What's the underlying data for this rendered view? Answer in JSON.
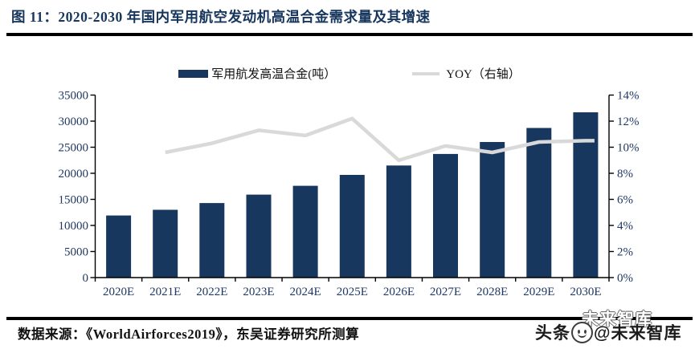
{
  "figure": {
    "title": "图 11：2020-2030 年国内军用航空发动机高温合金需求量及其增速",
    "source": "数据来源：《WorldAirforces2019》，东吴证券研究所测算"
  },
  "watermark": {
    "ghost_text": "未来智库",
    "prefix": "头条",
    "suffix": "@未来智库"
  },
  "colors": {
    "bar": "#17375E",
    "line": "#D9D9D9",
    "title_text": "#17365D",
    "axis_label_text": "#1F3864",
    "axis_line": "#000000",
    "rule": "#000000"
  },
  "chart_data": {
    "type": "bar",
    "subtype": "bar-line-combo",
    "title": "2020-2030 年国内军用航空发动机高温合金需求量及其增速",
    "categories": [
      "2020E",
      "2021E",
      "2022E",
      "2023E",
      "2024E",
      "2025E",
      "2026E",
      "2027E",
      "2028E",
      "2029E",
      "2030E"
    ],
    "series": [
      {
        "name": "军用航发高温合金(吨）",
        "type": "bar",
        "axis": "left",
        "color": "#17375E",
        "values": [
          11900,
          13000,
          14300,
          15900,
          17600,
          19700,
          21500,
          23700,
          26000,
          28700,
          31700
        ]
      },
      {
        "name": "YOY（右轴）",
        "type": "line",
        "axis": "right",
        "color": "#D9D9D9",
        "values": [
          null,
          9.6,
          10.3,
          11.3,
          10.9,
          12.2,
          9.0,
          10.1,
          9.6,
          10.4,
          10.5
        ]
      }
    ],
    "left_axis": {
      "min": 0,
      "max": 35000,
      "step": 5000,
      "ticks": [
        "0",
        "5000",
        "10000",
        "15000",
        "20000",
        "25000",
        "30000",
        "35000"
      ]
    },
    "right_axis": {
      "min": 0,
      "max": 14,
      "step": 2,
      "ticks": [
        "0%",
        "2%",
        "4%",
        "6%",
        "8%",
        "10%",
        "12%",
        "14%"
      ]
    },
    "legend_position": "top",
    "grid": false
  }
}
